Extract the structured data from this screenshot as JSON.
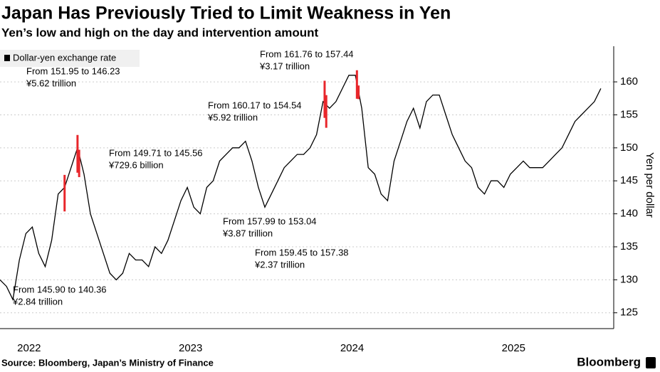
{
  "chart_data": {
    "type": "line",
    "title": "Japan Has Previously Tried to Limit Weakness in Yen",
    "subtitle": "Yen’s low and high on the day and intervention amount",
    "y_label": "Yen per dollar",
    "source": "Source: Bloomberg, Japan’s Ministry of Finance",
    "brand": "Bloomberg",
    "xlim": [
      2022.32,
      2026.12
    ],
    "ylim": [
      122.6,
      165.4
    ],
    "xticks": [
      {
        "value": 2022.5,
        "label": "2022"
      },
      {
        "value": 2023.5,
        "label": "2023"
      },
      {
        "value": 2024.5,
        "label": "2024"
      },
      {
        "value": 2025.5,
        "label": "2025"
      }
    ],
    "yticks": [
      125,
      130,
      135,
      140,
      145,
      150,
      155,
      160
    ],
    "grid": true,
    "x": [
      2022.32,
      2022.36,
      2022.4,
      2022.44,
      2022.48,
      2022.52,
      2022.56,
      2022.6,
      2022.64,
      2022.68,
      2022.72,
      2022.76,
      2022.8,
      2022.84,
      2022.88,
      2022.92,
      2022.96,
      2023.0,
      2023.04,
      2023.08,
      2023.12,
      2023.16,
      2023.2,
      2023.24,
      2023.28,
      2023.32,
      2023.36,
      2023.4,
      2023.44,
      2023.48,
      2023.52,
      2023.56,
      2023.6,
      2023.64,
      2023.68,
      2023.72,
      2023.76,
      2023.8,
      2023.84,
      2023.88,
      2023.92,
      2023.96,
      2024.0,
      2024.04,
      2024.08,
      2024.12,
      2024.16,
      2024.2,
      2024.24,
      2024.28,
      2024.32,
      2024.36,
      2024.4,
      2024.44,
      2024.48,
      2024.52,
      2024.56,
      2024.6,
      2024.64,
      2024.68,
      2024.72,
      2024.76,
      2024.8,
      2024.84,
      2024.88,
      2024.92,
      2024.96,
      2025.0,
      2025.04,
      2025.08,
      2025.12,
      2025.16,
      2025.2,
      2025.24,
      2025.28,
      2025.32,
      2025.36,
      2025.4,
      2025.44,
      2025.48,
      2025.52,
      2025.56,
      2025.6,
      2025.64,
      2025.68,
      2025.72,
      2025.76,
      2025.8,
      2025.84,
      2025.88,
      2025.92,
      2025.96,
      2026.0,
      2026.04
    ],
    "series": [
      {
        "name": "Dollar-yen exchange rate",
        "color": "#000000",
        "values": [
          130,
          129,
          127,
          133,
          137,
          138,
          134,
          132,
          136,
          143,
          144,
          147,
          150,
          146,
          140,
          137,
          134,
          131,
          130,
          131,
          134,
          133,
          133,
          132,
          135,
          134,
          136,
          139,
          142,
          144,
          141,
          140,
          144,
          145,
          148,
          149,
          150,
          150,
          151,
          148,
          144,
          141,
          143,
          145,
          147,
          148,
          149,
          149,
          150,
          152,
          157,
          156,
          157,
          159,
          161,
          161,
          156,
          147,
          146,
          143,
          142,
          148,
          151,
          154,
          156,
          153,
          157,
          158,
          158,
          155,
          152,
          150,
          148,
          147,
          144,
          143,
          145,
          145,
          144,
          146,
          147,
          148,
          147,
          147,
          147,
          148,
          149,
          150,
          152,
          154,
          155,
          156,
          157,
          159
        ]
      }
    ],
    "interventions": {
      "color": "#e8262b",
      "items": [
        {
          "x": 2022.72,
          "high": 145.9,
          "low": 140.36,
          "range": "From 145.90 to 140.36",
          "amount": "¥2.84 trillion"
        },
        {
          "x": 2022.8,
          "high": 151.95,
          "low": 146.23,
          "range": "From 151.95 to 146.23",
          "amount": "¥5.62 trillion"
        },
        {
          "x": 2022.81,
          "high": 149.71,
          "low": 145.56,
          "range": "From 149.71 to 145.56",
          "amount": "¥729.6 billion"
        },
        {
          "x": 2024.33,
          "high": 160.17,
          "low": 154.54,
          "range": "From 160.17 to 154.54",
          "amount": "¥5.92 trillion"
        },
        {
          "x": 2024.34,
          "high": 157.99,
          "low": 153.04,
          "range": "From 157.99 to 153.04",
          "amount": "¥3.87 trillion"
        },
        {
          "x": 2024.53,
          "high": 161.76,
          "low": 157.44,
          "range": "From 161.76 to 157.44",
          "amount": "¥3.17 trillion"
        },
        {
          "x": 2024.54,
          "high": 159.45,
          "low": 157.38,
          "range": "From 159.45 to 157.38",
          "amount": "¥2.37 trillion"
        }
      ]
    }
  }
}
